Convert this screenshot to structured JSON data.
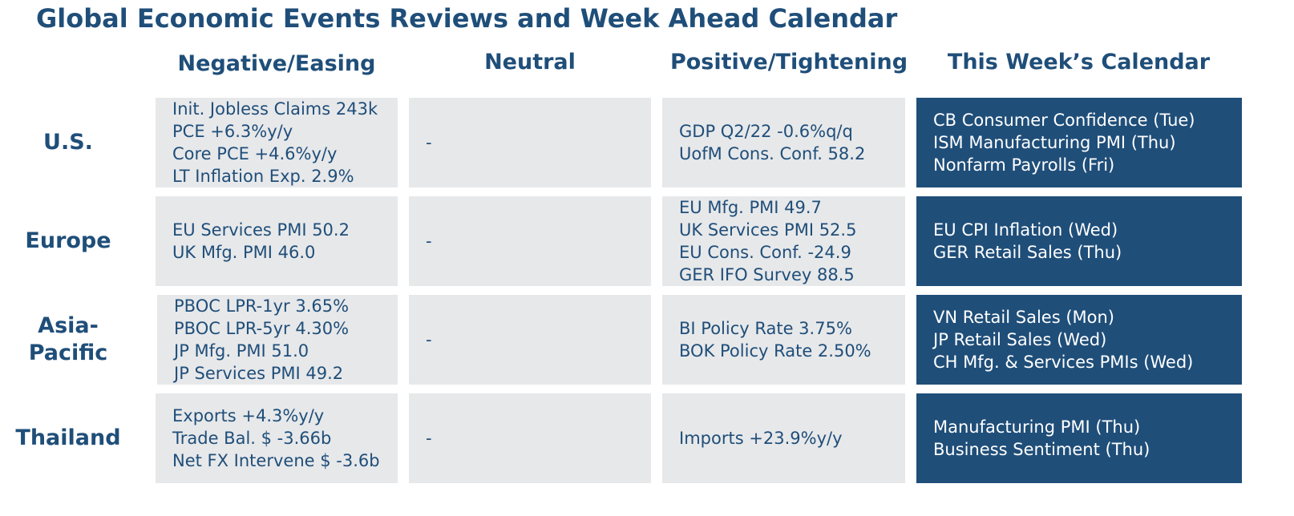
{
  "title": "Global Economic Events Reviews and Week Ahead Calendar",
  "columns": [
    "Negative/Easing",
    "Neutral",
    "Positive/Tightening",
    "This Week’s Calendar"
  ],
  "colors": {
    "text": "#1f4e79",
    "cell_background": "#e7e8ea",
    "calendar_background": "#1f4e79",
    "calendar_text": "#ffffff"
  },
  "rows": [
    {
      "region": "U.S.",
      "negative": [
        "Init. Jobless Claims 243k",
        "PCE +6.3%y/y",
        "Core PCE +4.6%y/y",
        "LT Inflation Exp. 2.9%"
      ],
      "neutral": [
        "-"
      ],
      "positive": [
        "GDP Q2/22 -0.6%q/q",
        "UofM Cons. Conf. 58.2"
      ],
      "calendar": [
        "CB Consumer Confidence (Tue)",
        "ISM Manufacturing PMI (Thu)",
        "Nonfarm Payrolls (Fri)"
      ]
    },
    {
      "region": "Europe",
      "negative": [
        "EU Services PMI 50.2",
        "UK Mfg. PMI 46.0"
      ],
      "neutral": [
        "-"
      ],
      "positive": [
        "EU Mfg. PMI 49.7",
        "UK Services PMI 52.5",
        "EU Cons. Conf. -24.9",
        "GER IFO Survey 88.5"
      ],
      "calendar": [
        "EU CPI Inflation (Wed)",
        "GER Retail Sales (Thu)"
      ]
    },
    {
      "region": "Asia-Pacific",
      "region_lines": [
        "Asia-",
        "Pacific"
      ],
      "negative": [
        "PBOC LPR-1yr 3.65%",
        "PBOC LPR-5yr 4.30%",
        "JP Mfg. PMI 51.0",
        "JP Services PMI 49.2"
      ],
      "neutral": [
        "-"
      ],
      "positive": [
        "BI Policy Rate 3.75%",
        "BOK Policy Rate 2.50%"
      ],
      "calendar": [
        "VN Retail Sales (Mon)",
        "JP Retail Sales (Wed)",
        "CH Mfg. & Services PMIs (Wed)"
      ]
    },
    {
      "region": "Thailand",
      "negative": [
        "Exports +4.3%y/y",
        "Trade Bal. $ -3.66b",
        "Net FX Intervene $ -3.6b"
      ],
      "neutral": [
        "-"
      ],
      "positive": [
        "Imports +23.9%y/y"
      ],
      "calendar": [
        "Manufacturing PMI (Thu)",
        "Business Sentiment (Thu)"
      ]
    }
  ]
}
